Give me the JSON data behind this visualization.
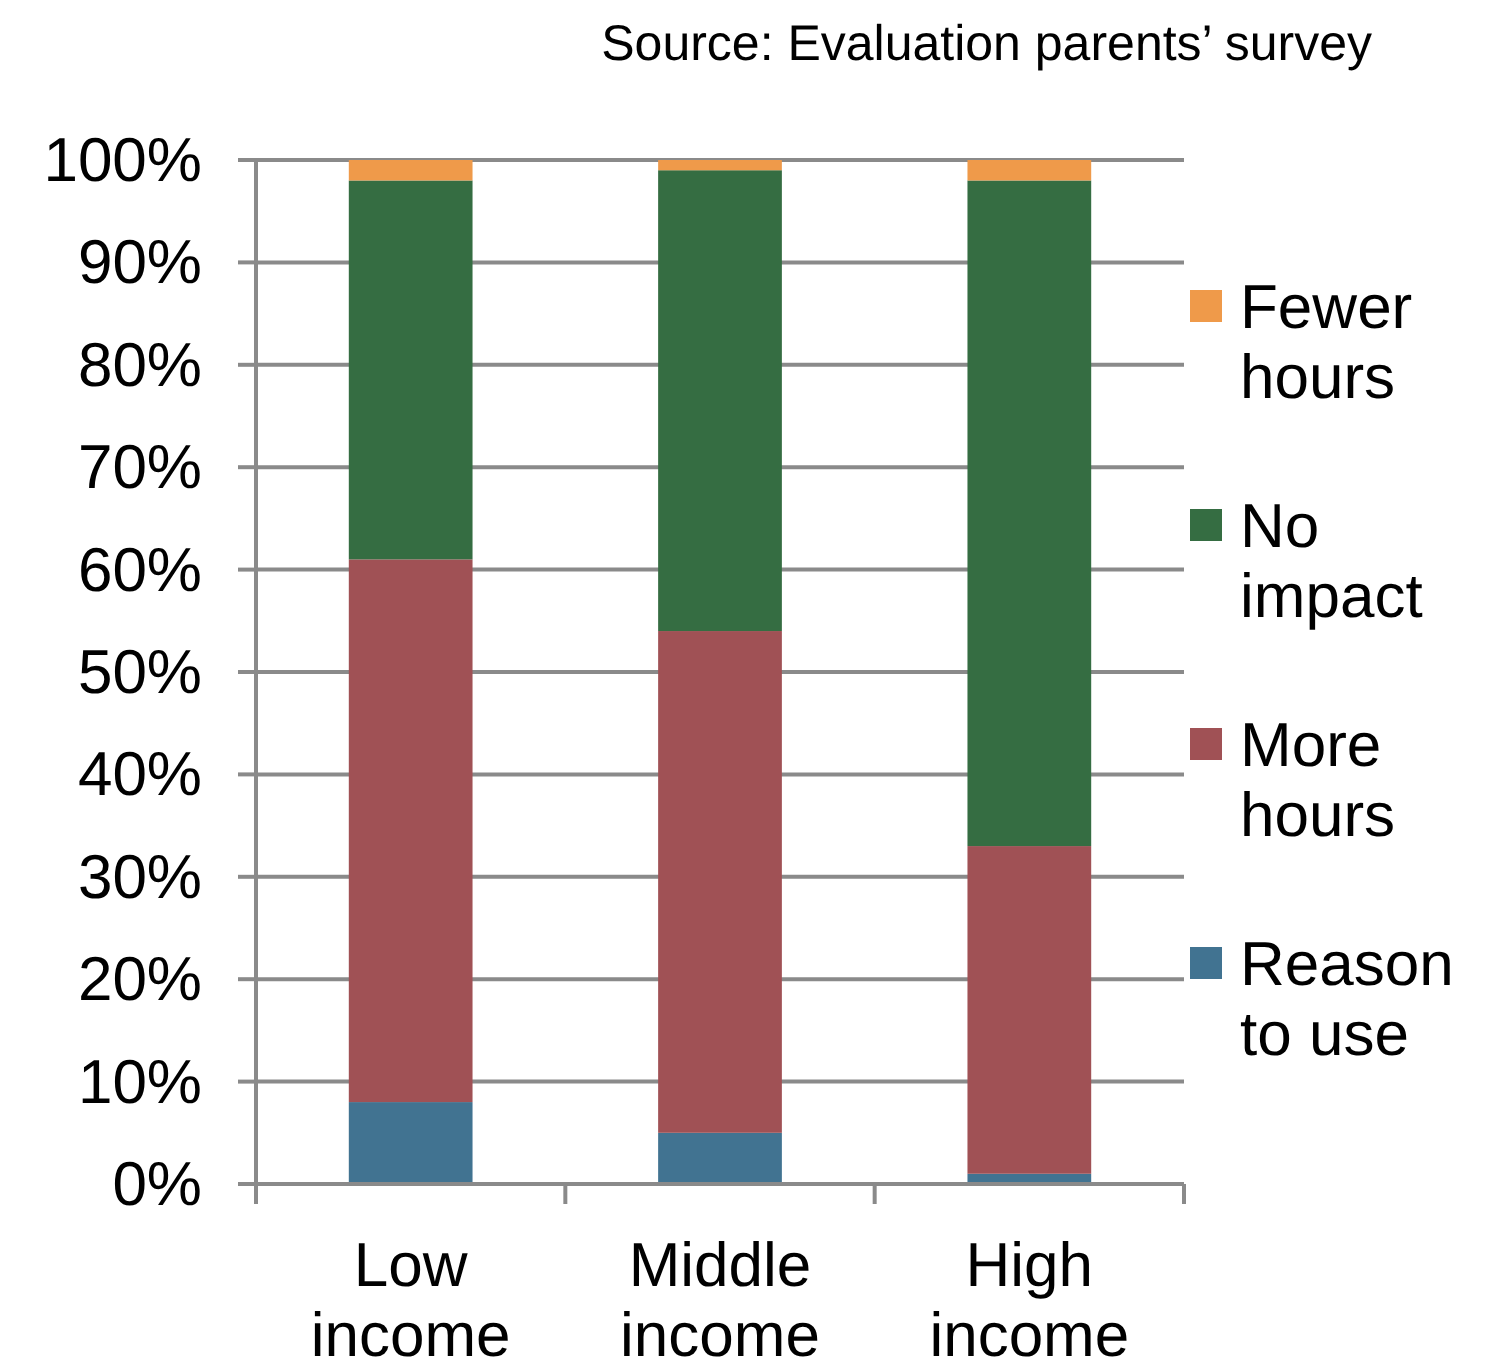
{
  "chart_data": {
    "type": "bar",
    "stacked": true,
    "categories": [
      "Low income",
      "Middle income",
      "High income"
    ],
    "series": [
      {
        "name": "Reason to use",
        "color": "#417391",
        "values": [
          8,
          5,
          1
        ]
      },
      {
        "name": "More hours",
        "color": "#a05155",
        "values": [
          53,
          49,
          32
        ]
      },
      {
        "name": "No impact",
        "color": "#356d42",
        "values": [
          37,
          45,
          65
        ]
      },
      {
        "name": "Fewer hours",
        "color": "#ef9a4a",
        "values": [
          2,
          1,
          2
        ]
      }
    ],
    "ylim": [
      0,
      100
    ],
    "yticks": [
      {
        "value": 0,
        "label": "0%"
      },
      {
        "value": 10,
        "label": "10%"
      },
      {
        "value": 20,
        "label": "20%"
      },
      {
        "value": 30,
        "label": "30%"
      },
      {
        "value": 40,
        "label": "40%"
      },
      {
        "value": 50,
        "label": "50%"
      },
      {
        "value": 60,
        "label": "60%"
      },
      {
        "value": 70,
        "label": "70%"
      },
      {
        "value": 80,
        "label": "80%"
      },
      {
        "value": 90,
        "label": "90%"
      },
      {
        "value": 100,
        "label": "100%"
      }
    ],
    "grid": "y",
    "legend": "right",
    "annotations": [
      "Source: Evaluation parents’ survey"
    ]
  }
}
